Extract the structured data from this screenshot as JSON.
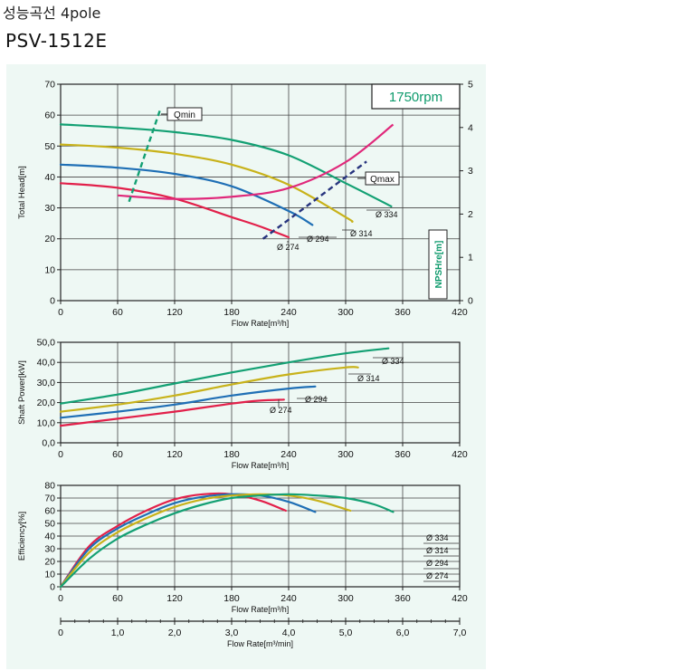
{
  "header": {
    "title_ko": "성능곡선 4pole",
    "model": "PSV-1512E"
  },
  "colors": {
    "d274": "#e2204a",
    "d294": "#1f6fb5",
    "d314": "#c8b21a",
    "d334": "#13a073",
    "npsh": "#e0287a",
    "qline_min": "#13a073",
    "qline_max": "#27347e",
    "rpm_text": "#0e9a6c",
    "panel_bg": "#eef8f4"
  },
  "chart_data": [
    {
      "id": "head",
      "type": "line",
      "rpm_label": "1750rpm",
      "xlabel": "Flow Rate[m³/h]",
      "ylabel": "Total Head[m]",
      "y2label": "NPSHre[m]",
      "xlim": [
        0,
        420
      ],
      "ylim": [
        0,
        70
      ],
      "y2lim": [
        0,
        5
      ],
      "xticks": [
        "0",
        "60",
        "120",
        "180",
        "240",
        "300",
        "360",
        "420"
      ],
      "yticks": [
        "0",
        "10",
        "20",
        "30",
        "40",
        "50",
        "60",
        "70"
      ],
      "y2ticks": [
        "0",
        "1",
        "2",
        "3",
        "4",
        "5"
      ],
      "grid": true,
      "series": [
        {
          "name": "Ø 274",
          "color_key": "d274",
          "x": [
            0,
            60,
            120,
            180,
            210,
            240
          ],
          "y": [
            38,
            36.5,
            33,
            27,
            24,
            20.5
          ]
        },
        {
          "name": "Ø 294",
          "color_key": "d294",
          "x": [
            0,
            60,
            120,
            180,
            240,
            265
          ],
          "y": [
            44,
            43,
            41,
            37,
            29,
            24.5
          ]
        },
        {
          "name": "Ø 314",
          "color_key": "d314",
          "x": [
            0,
            60,
            120,
            180,
            240,
            300,
            307
          ],
          "y": [
            50.5,
            49.5,
            47.5,
            44,
            37.5,
            27,
            25.5
          ]
        },
        {
          "name": "Ø 334",
          "color_key": "d334",
          "x": [
            0,
            60,
            120,
            180,
            240,
            300,
            348
          ],
          "y": [
            57,
            56,
            54.5,
            52,
            47,
            38,
            30.5
          ]
        }
      ],
      "npsh": {
        "name": "NPSHre",
        "color_key": "npsh",
        "x": [
          60,
          120,
          180,
          240,
          300,
          350
        ],
        "y": [
          2.43,
          2.35,
          2.4,
          2.6,
          3.2,
          4.07
        ]
      },
      "qlines": [
        {
          "label": "Qmin",
          "color_key": "qline_min",
          "x": [
            72,
            105
          ],
          "y": [
            32,
            62
          ]
        },
        {
          "label": "Qmax",
          "color_key": "qline_max",
          "x": [
            213,
            322
          ],
          "y": [
            20,
            45
          ]
        }
      ],
      "curve_labels": [
        "Ø 334",
        "Ø 314",
        "Ø 294",
        "Ø 274"
      ]
    },
    {
      "id": "power",
      "type": "line",
      "xlabel": "Flow Rate[m³/h]",
      "ylabel": "Shaft Power[kW]",
      "xlim": [
        0,
        420
      ],
      "ylim": [
        0,
        50
      ],
      "xticks": [
        "0",
        "60",
        "120",
        "180",
        "240",
        "300",
        "360",
        "420"
      ],
      "yticks": [
        "0,0",
        "10,0",
        "20,0",
        "30,0",
        "40,0",
        "50,0"
      ],
      "grid": true,
      "series": [
        {
          "name": "Ø 274",
          "color_key": "d274",
          "x": [
            0,
            60,
            120,
            180,
            210,
            235
          ],
          "y": [
            8.5,
            12,
            15.5,
            19.5,
            21,
            21.5
          ]
        },
        {
          "name": "Ø 294",
          "color_key": "d294",
          "x": [
            0,
            60,
            120,
            180,
            240,
            268
          ],
          "y": [
            12.5,
            15.5,
            19,
            23.5,
            27,
            28
          ]
        },
        {
          "name": "Ø 314",
          "color_key": "d314",
          "x": [
            0,
            60,
            120,
            180,
            240,
            300,
            313
          ],
          "y": [
            15.5,
            19,
            23.5,
            29,
            34,
            37.5,
            37.5
          ]
        },
        {
          "name": "Ø 334",
          "color_key": "d334",
          "x": [
            0,
            60,
            120,
            180,
            240,
            300,
            345
          ],
          "y": [
            19.5,
            24,
            29.5,
            35,
            40,
            44.5,
            47
          ]
        }
      ],
      "curve_labels": [
        "Ø 334",
        "Ø 314",
        "Ø 294",
        "Ø 274"
      ]
    },
    {
      "id": "efficiency",
      "type": "line",
      "xlabel": "Flow Rate[m³/h]",
      "ylabel": "Efficiency[%]",
      "xlim": [
        0,
        420
      ],
      "ylim": [
        0,
        80
      ],
      "xticks": [
        "0",
        "60",
        "120",
        "180",
        "240",
        "300",
        "360",
        "420"
      ],
      "yticks": [
        "0",
        "10",
        "20",
        "30",
        "40",
        "50",
        "60",
        "70",
        "80"
      ],
      "grid": true,
      "series": [
        {
          "name": "Ø 274",
          "color_key": "d274",
          "x": [
            0,
            30,
            60,
            90,
            120,
            150,
            180,
            210,
            237
          ],
          "y": [
            0,
            32,
            48,
            60,
            69,
            73,
            73,
            68,
            60
          ]
        },
        {
          "name": "Ø 294",
          "color_key": "d294",
          "x": [
            0,
            30,
            60,
            90,
            120,
            150,
            180,
            210,
            240,
            268
          ],
          "y": [
            0,
            30,
            46,
            57,
            66,
            71,
            73,
            72,
            67,
            59
          ]
        },
        {
          "name": "Ø 314",
          "color_key": "d314",
          "x": [
            0,
            30,
            60,
            90,
            120,
            150,
            180,
            210,
            240,
            270,
            305
          ],
          "y": [
            0,
            27,
            43,
            54,
            63,
            69,
            72,
            73,
            72,
            68,
            60
          ]
        },
        {
          "name": "Ø 334",
          "color_key": "d334",
          "x": [
            0,
            30,
            60,
            90,
            120,
            150,
            180,
            210,
            240,
            270,
            300,
            330,
            350
          ],
          "y": [
            0,
            22,
            38,
            49,
            58,
            65,
            70,
            72,
            73,
            72,
            70,
            65,
            59
          ]
        }
      ],
      "legend": [
        "Ø 334",
        "Ø 314",
        "Ø 294",
        "Ø 274"
      ],
      "legend_position": "right"
    },
    {
      "id": "flow-min-axis",
      "type": "axis",
      "xlabel": "Flow Rate[m³/min]",
      "xlim": [
        0,
        7
      ],
      "xticks": [
        "0",
        "1,0",
        "2,0",
        "3,0",
        "4,0",
        "5,0",
        "6,0",
        "7,0"
      ]
    }
  ]
}
